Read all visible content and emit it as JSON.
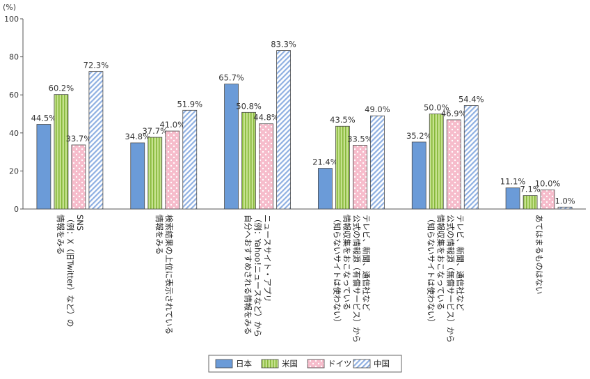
{
  "chart_data": {
    "type": "bar",
    "unit_label": "(%)",
    "ylim": [
      0,
      100
    ],
    "yticks": [
      0,
      20,
      40,
      60,
      80,
      100
    ],
    "grid": false,
    "legend_position": "bottom-center",
    "categories": [
      [
        "SNS",
        "（例：X（旧Twitter）など）の",
        "情報をみる"
      ],
      [
        "検索結果の上位に表示されている",
        "情報をみる"
      ],
      [
        "ニュースサイト・アプリ",
        "（例：Yahoo!ニュースなど）から",
        "自分へおすすめされる情報をみる"
      ],
      [
        "テレビ、新聞、通信社など",
        "公式の情報源（有償サービス）から",
        "情報収集をおこなっている",
        "（知らないサイトは使わない）"
      ],
      [
        "テレビ、新聞、通信社など",
        "公式の情報源（無償サービス）から",
        "情報収集をおこなっている",
        "（知らないサイトは使わない）"
      ],
      [
        "あてはまるものはない"
      ]
    ],
    "series": [
      {
        "name": "日本",
        "color": "#6b9bd8",
        "pattern": "solid",
        "values": [
          44.5,
          34.8,
          65.7,
          21.4,
          35.2,
          11.1
        ]
      },
      {
        "name": "米国",
        "color": "#a6cf5a",
        "pattern": "vertical-lines",
        "values": [
          60.2,
          37.7,
          50.8,
          43.5,
          50.0,
          7.1
        ]
      },
      {
        "name": "ドイツ",
        "color": "#f6bccb",
        "pattern": "dots",
        "values": [
          33.7,
          41.0,
          44.8,
          33.5,
          46.9,
          10.0
        ]
      },
      {
        "name": "中国",
        "color": "#9bb9e6",
        "pattern": "diagonal-lines",
        "values": [
          72.3,
          51.9,
          83.3,
          49.0,
          54.4,
          1.0
        ]
      }
    ]
  }
}
